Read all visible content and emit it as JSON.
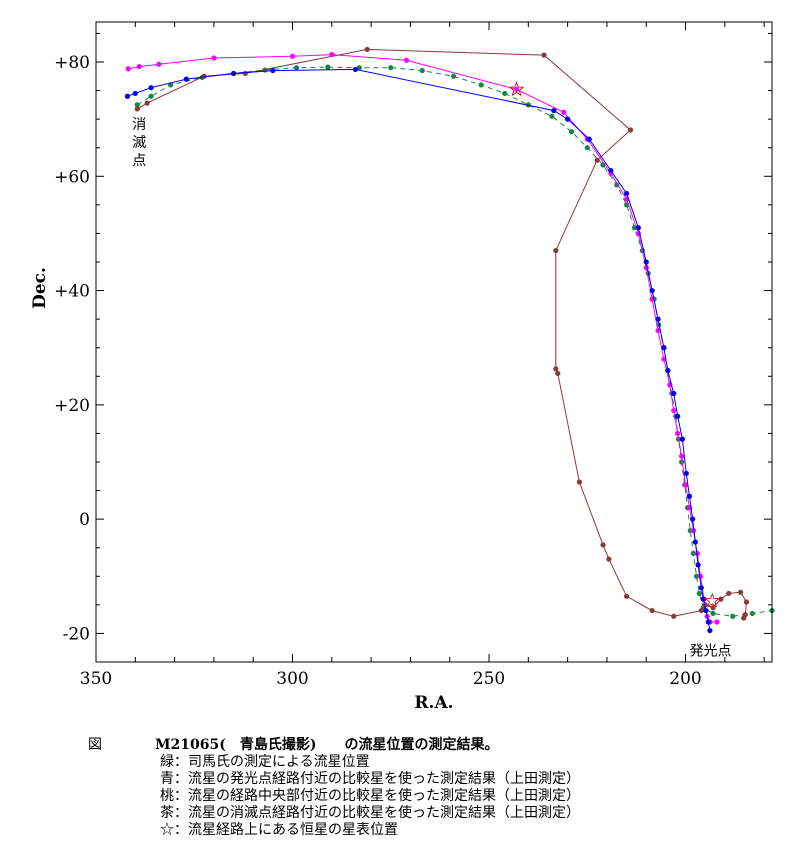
{
  "chart_data": {
    "type": "line",
    "xlabel": "R.A.",
    "ylabel": "Dec.",
    "xlim": [
      350,
      178
    ],
    "ylim": [
      -25,
      87
    ],
    "x_ticks": [
      {
        "value": 350,
        "label": "350"
      },
      {
        "value": 300,
        "label": "300"
      },
      {
        "value": 250,
        "label": "250"
      },
      {
        "value": 200,
        "label": "200"
      }
    ],
    "y_ticks": [
      {
        "value": 80,
        "label": "+80"
      },
      {
        "value": 60,
        "label": "+60"
      },
      {
        "value": 40,
        "label": "+40"
      },
      {
        "value": 20,
        "label": "+20"
      },
      {
        "value": 0,
        "label": "0"
      },
      {
        "value": -20,
        "label": "-20"
      }
    ],
    "annotations": [
      {
        "text": "消滅点",
        "x": 339,
        "y": 62,
        "vertical": true
      },
      {
        "text": "発光点",
        "x": 199,
        "y": -23,
        "vertical": false
      }
    ],
    "series": [
      {
        "name": "緑",
        "color": "#118844",
        "dashed": true,
        "markers": true,
        "points": [
          [
            339.5,
            72.5
          ],
          [
            336,
            74
          ],
          [
            331,
            76
          ],
          [
            323,
            77.3
          ],
          [
            315,
            78
          ],
          [
            307,
            78.6
          ],
          [
            299,
            79
          ],
          [
            291,
            79.1
          ],
          [
            283,
            79
          ],
          [
            275,
            79
          ],
          [
            267,
            78.5
          ],
          [
            259,
            77.5
          ],
          [
            252,
            76
          ],
          [
            246,
            74.5
          ],
          [
            240,
            72.5
          ],
          [
            234,
            70.5
          ],
          [
            229,
            67.8
          ],
          [
            225,
            65
          ],
          [
            221,
            62
          ],
          [
            217.5,
            58.5
          ],
          [
            215,
            55
          ],
          [
            213,
            51
          ],
          [
            211,
            47
          ],
          [
            209.5,
            43
          ],
          [
            208,
            38.5
          ],
          [
            206.8,
            34
          ],
          [
            205.5,
            30
          ],
          [
            204.5,
            26
          ],
          [
            203.5,
            22
          ],
          [
            202.5,
            18
          ],
          [
            201.8,
            14
          ],
          [
            201,
            10
          ],
          [
            200.2,
            6
          ],
          [
            199.5,
            2
          ],
          [
            198.8,
            -2
          ],
          [
            198,
            -6
          ],
          [
            197.2,
            -10
          ],
          [
            196.5,
            -13
          ],
          [
            195.5,
            -15.5
          ],
          [
            193,
            -16.5
          ],
          [
            188,
            -17
          ],
          [
            183,
            -16.5
          ],
          [
            178,
            -16
          ]
        ]
      },
      {
        "name": "青",
        "color": "#0000ee",
        "dashed": false,
        "markers": true,
        "points": [
          [
            342,
            74
          ],
          [
            340,
            74.5
          ],
          [
            336,
            75.5
          ],
          [
            327,
            77
          ],
          [
            315,
            78
          ],
          [
            305,
            78.5
          ],
          [
            284,
            78.7
          ],
          [
            233.5,
            71.5
          ],
          [
            230,
            70
          ],
          [
            224.5,
            66.5
          ],
          [
            219,
            61
          ],
          [
            215,
            57
          ],
          [
            212,
            51
          ],
          [
            210,
            45
          ],
          [
            208.5,
            40
          ],
          [
            207,
            35
          ],
          [
            205.5,
            30
          ],
          [
            204.5,
            26
          ],
          [
            203,
            22
          ],
          [
            202,
            18
          ],
          [
            200.8,
            14
          ],
          [
            199.8,
            8
          ],
          [
            199,
            4
          ],
          [
            198.2,
            0
          ],
          [
            197.5,
            -4
          ],
          [
            196.8,
            -8
          ],
          [
            196,
            -12
          ],
          [
            195.5,
            -14
          ],
          [
            194.8,
            -16
          ],
          [
            194.2,
            -18
          ],
          [
            193.8,
            -19.5
          ]
        ]
      },
      {
        "name": "桃",
        "color": "#ff00ff",
        "dashed": false,
        "markers": true,
        "points": [
          [
            341.8,
            78.8
          ],
          [
            339,
            79.2
          ],
          [
            334,
            79.6
          ],
          [
            320,
            80.7
          ],
          [
            300,
            81
          ],
          [
            290,
            81.3
          ],
          [
            271,
            80.3
          ],
          [
            243,
            75.2
          ],
          [
            231,
            71.2
          ],
          [
            225,
            66.5
          ],
          [
            219,
            60.5
          ],
          [
            215,
            56
          ],
          [
            212,
            50
          ],
          [
            210,
            44
          ],
          [
            208.5,
            38.5
          ],
          [
            207,
            33
          ],
          [
            205.5,
            28
          ],
          [
            204,
            23.5
          ],
          [
            203,
            19
          ],
          [
            202,
            15
          ],
          [
            201,
            11
          ],
          [
            200,
            6
          ],
          [
            199,
            2
          ],
          [
            198,
            -2
          ],
          [
            197,
            -6
          ],
          [
            196.2,
            -10
          ],
          [
            195.3,
            -14
          ],
          [
            194.5,
            -17
          ],
          [
            193.8,
            -18
          ],
          [
            192,
            -18
          ]
        ]
      },
      {
        "name": "茶",
        "color": "#8b3a3a",
        "dashed": false,
        "markers": true,
        "points": [
          [
            339.5,
            71.8
          ],
          [
            337,
            72.8
          ],
          [
            322.5,
            77.5
          ],
          [
            312,
            78
          ],
          [
            281,
            82.2
          ],
          [
            236,
            81.2
          ],
          [
            214,
            68.1
          ],
          [
            222.5,
            62.8
          ],
          [
            233,
            47
          ],
          [
            233,
            26.3
          ],
          [
            232.5,
            25.5
          ],
          [
            227,
            6.5
          ],
          [
            221,
            -4.5
          ],
          [
            219.5,
            -7
          ],
          [
            215,
            -13.5
          ],
          [
            208.5,
            -16
          ],
          [
            203,
            -17
          ],
          [
            196,
            -16
          ],
          [
            195,
            -15
          ],
          [
            193,
            -15.5
          ],
          [
            191,
            -14
          ],
          [
            189,
            -13
          ],
          [
            186,
            -12.8
          ],
          [
            184.5,
            -14.5
          ],
          [
            184.8,
            -16.7
          ],
          [
            185.2,
            -17.3
          ]
        ]
      }
    ],
    "stars": [
      {
        "x": 243,
        "y": 75.2
      },
      {
        "x": 193.2,
        "y": -14.3
      }
    ]
  },
  "caption": {
    "label": "図",
    "title": "M21065(　青島氏撮影)　　の流星位置の測定結果。",
    "lines": [
      "緑：司馬氏の測定による流星位置",
      "青：流星の発光点経路付近の比較星を使った測定結果（上田測定）",
      "桃：流星の経路中央部付近の比較星を使った測定結果（上田測定）",
      "茶：流星の消滅点経路付近の比較星を使った測定結果（上田測定）",
      "☆：流星経路上にある恒星の星表位置"
    ]
  }
}
